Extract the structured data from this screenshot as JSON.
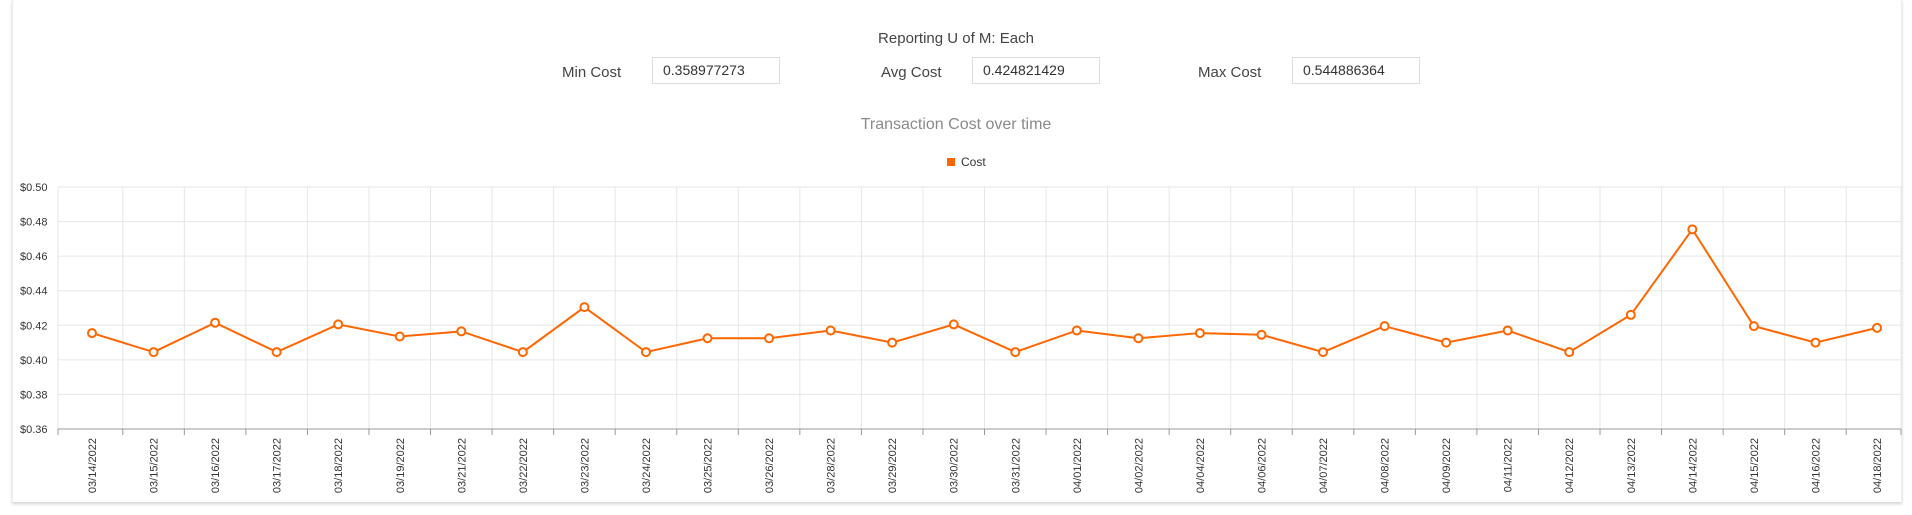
{
  "header": {
    "uom_label": "Reporting U of M: Each",
    "min_label": "Min Cost",
    "min_value": "0.358977273",
    "avg_label": "Avg Cost",
    "avg_value": "0.424821429",
    "max_label": "Max Cost",
    "max_value": "0.544886364"
  },
  "colors": {
    "series": "#ff6600",
    "grid": "#e6e6e6",
    "axis": "#999999"
  },
  "chart_data": {
    "type": "line",
    "title": "Transaction Cost over time",
    "legend": [
      {
        "name": "Cost",
        "color": "#ff6600"
      }
    ],
    "legend_position": "top-center",
    "xlabel": "",
    "ylabel": "",
    "ylim": [
      0.36,
      0.5
    ],
    "y_ticks": [
      "$0.50",
      "$0.48",
      "$0.46",
      "$0.44",
      "$0.42",
      "$0.40",
      "$0.38",
      "$0.36"
    ],
    "y_tick_values": [
      0.5,
      0.48,
      0.46,
      0.44,
      0.42,
      0.4,
      0.38,
      0.36
    ],
    "grid": true,
    "categories": [
      "03/14/2022",
      "03/15/2022",
      "03/16/2022",
      "03/17/2022",
      "03/18/2022",
      "03/19/2022",
      "03/21/2022",
      "03/22/2022",
      "03/23/2022",
      "03/24/2022",
      "03/25/2022",
      "03/26/2022",
      "03/28/2022",
      "03/29/2022",
      "03/30/2022",
      "03/31/2022",
      "04/01/2022",
      "04/02/2022",
      "04/04/2022",
      "04/06/2022",
      "04/07/2022",
      "04/08/2022",
      "04/09/2022",
      "04/11/2022",
      "04/12/2022",
      "04/13/2022",
      "04/14/2022",
      "04/15/2022",
      "04/16/2022",
      "04/18/2022"
    ],
    "series": [
      {
        "name": "Cost",
        "values": [
          0.4155,
          0.4045,
          0.4215,
          0.4045,
          0.4205,
          0.4135,
          0.4165,
          0.4045,
          0.4305,
          0.4045,
          0.4125,
          0.4125,
          0.417,
          0.41,
          0.4205,
          0.4045,
          0.417,
          0.4125,
          0.4155,
          0.4145,
          0.4045,
          0.4195,
          0.41,
          0.417,
          0.4045,
          0.426,
          0.4755,
          0.4195,
          0.41,
          0.4185
        ]
      }
    ]
  }
}
